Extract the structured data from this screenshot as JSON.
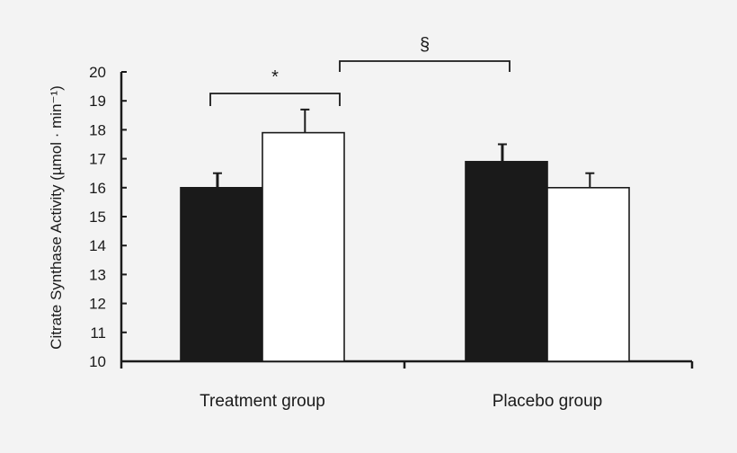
{
  "chart_data": {
    "type": "bar",
    "categories": [
      "Treatment group",
      "Placebo group"
    ],
    "series": [
      {
        "fill": "#1a1a1a",
        "values": [
          16.0,
          16.9
        ],
        "errors": [
          0.5,
          0.6
        ]
      },
      {
        "fill": "#ffffff",
        "values": [
          17.9,
          16.0
        ],
        "errors": [
          0.8,
          0.5
        ]
      }
    ],
    "ylabel": "Citrate Synthase Activity (µmol · min⁻¹)",
    "ylim": [
      10,
      20
    ],
    "yticks": [
      "10",
      "11",
      "12",
      "13",
      "14",
      "15",
      "16",
      "17",
      "18",
      "19",
      "20"
    ],
    "annotations": [
      {
        "symbol": "*",
        "from": {
          "category": 0,
          "series": 0
        },
        "to": {
          "category": 0,
          "series": 1
        }
      },
      {
        "symbol": "§",
        "from": {
          "category": 0,
          "series": 1
        },
        "to": {
          "category": 1,
          "series": 0
        }
      }
    ],
    "grid": false,
    "legend": "none"
  }
}
